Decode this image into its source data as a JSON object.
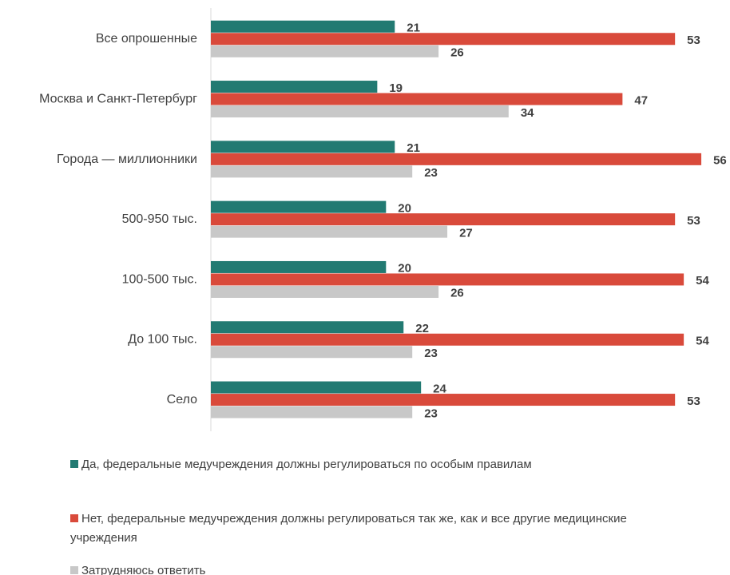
{
  "chart_data": {
    "type": "bar",
    "orientation": "horizontal",
    "categories": [
      "Все опрошенные",
      "Москва и Санкт-Петербург",
      "Города — миллионники",
      "500-950 тыс.",
      "100-500 тыс.",
      "До 100 тыс.",
      "Село"
    ],
    "series": [
      {
        "name": "Да, федеральные медучреждения должны регулироваться по особым правилам",
        "color": "#227a72",
        "values": [
          21,
          19,
          21,
          20,
          20,
          22,
          24
        ]
      },
      {
        "name": "Нет, федеральные медучреждения должны регулироваться так же, как и все другие медицинские учреждения",
        "color": "#d94a3b",
        "values": [
          53,
          47,
          56,
          53,
          54,
          54,
          53
        ]
      },
      {
        "name": "Затрудняюсь ответить",
        "color": "#c8c8c8",
        "values": [
          26,
          34,
          23,
          27,
          26,
          23,
          23
        ]
      }
    ],
    "xlim": [
      0,
      58
    ],
    "legend": "bottom"
  }
}
